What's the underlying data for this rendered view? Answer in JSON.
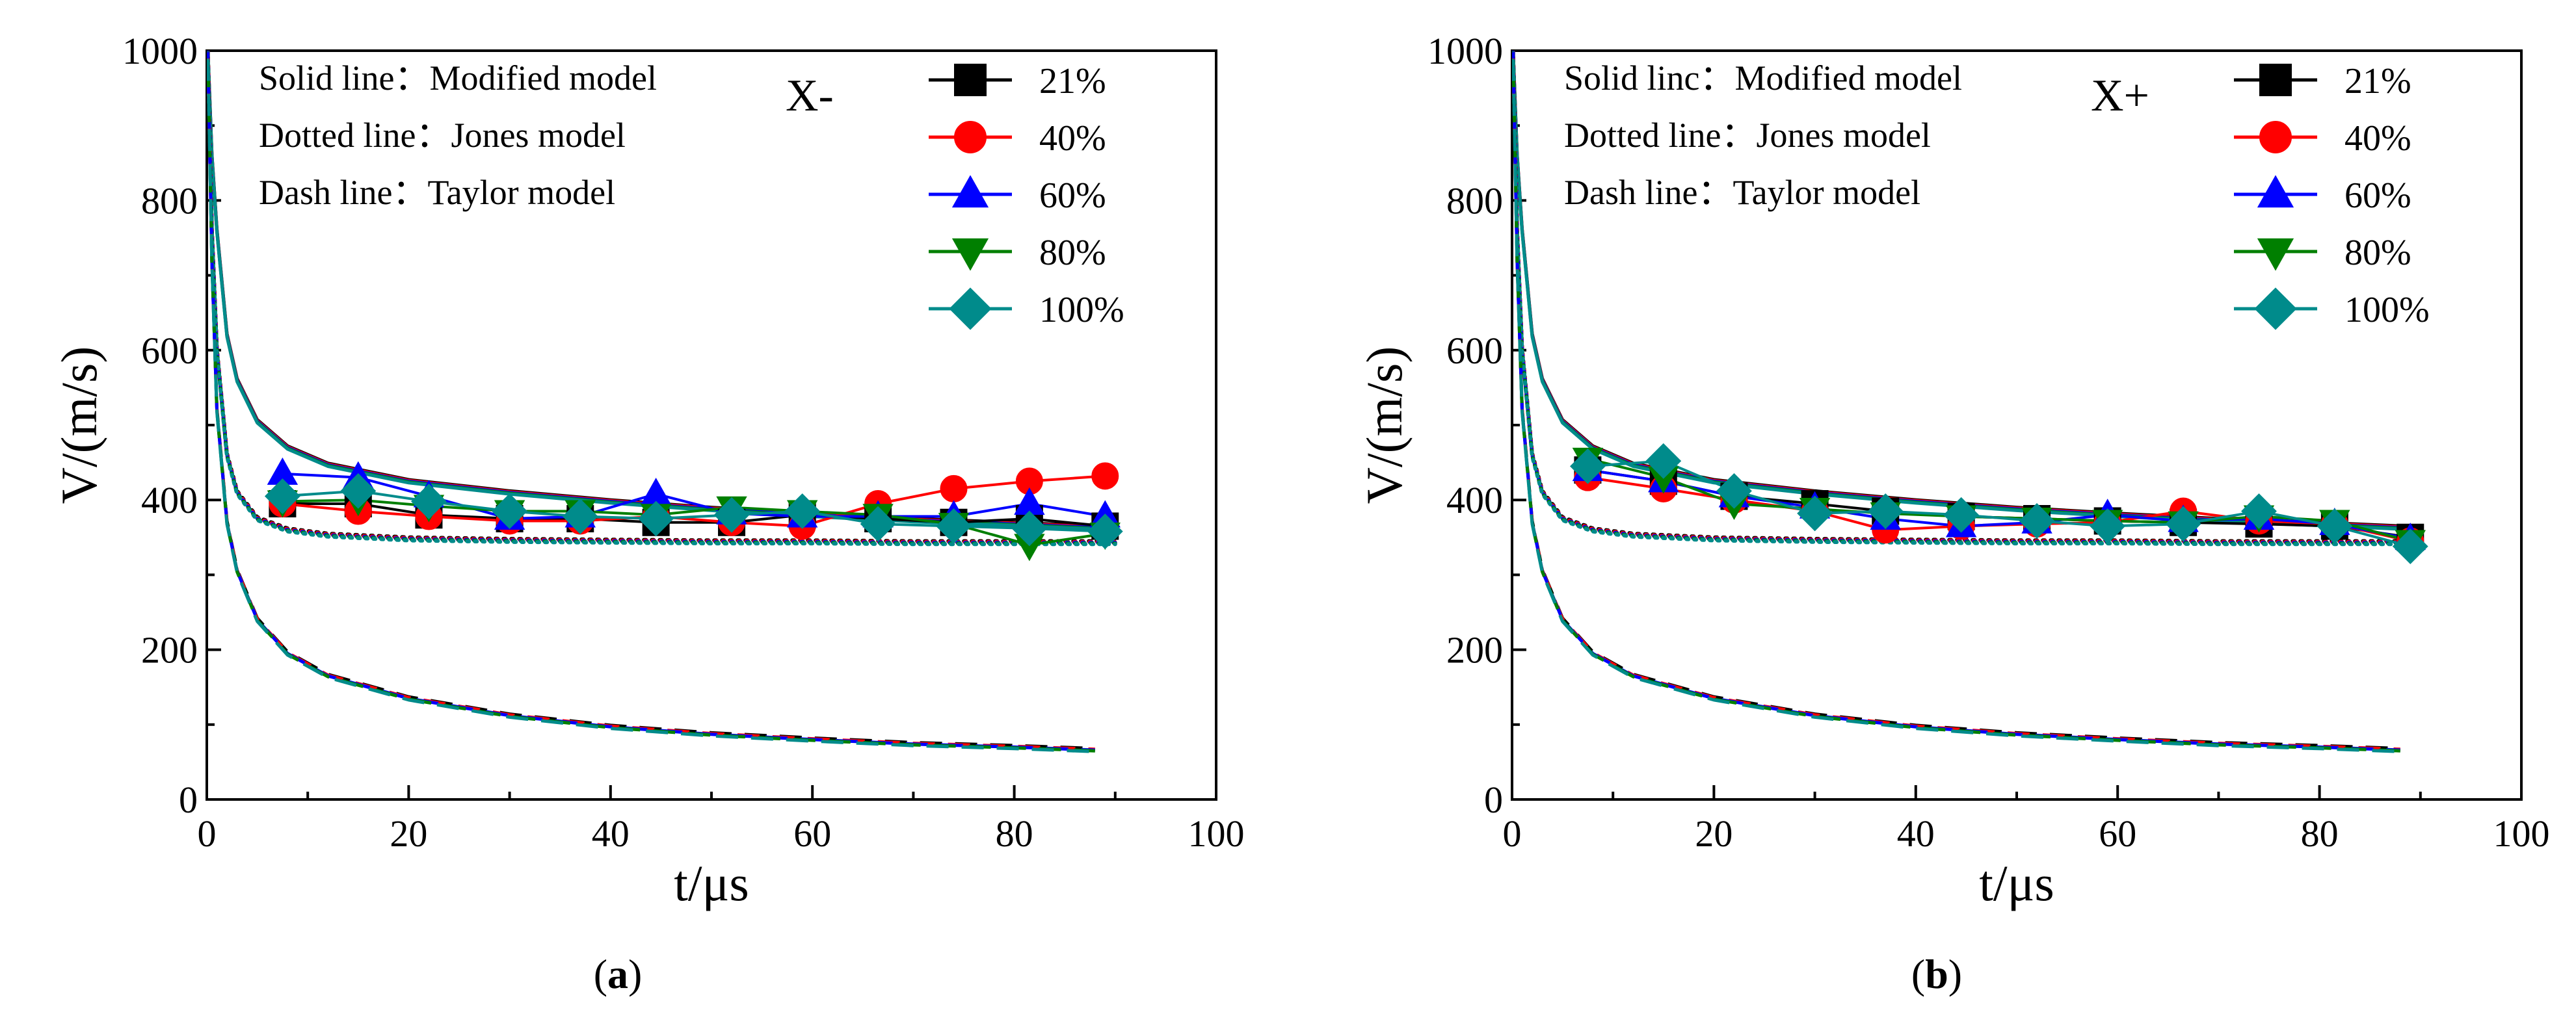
{
  "figure": {
    "panels_order": [
      "a",
      "b"
    ]
  },
  "colors": {
    "21%": "#000000",
    "40%": "#ff0000",
    "60%": "#0000ff",
    "80%": "#007f00",
    "100%": "#008b8b",
    "axes": "#000000",
    "background": "#ffffff"
  },
  "chart_data": [
    {
      "type": "line",
      "panel_label": "(a)",
      "panel_letter": "a",
      "direction_label": "X-",
      "line_notes": [
        "Solid line：Modified model",
        "Dotted line：Jones model",
        "Dash line：Taylor model"
      ],
      "xlabel": "t/μs",
      "ylabel": "V/(m/s)",
      "xlim": [
        0,
        100
      ],
      "ylim": [
        0,
        1000
      ],
      "xticks": [
        0,
        20,
        40,
        60,
        80,
        100
      ],
      "yticks": [
        0,
        200,
        400,
        600,
        800,
        1000
      ],
      "legend": [
        {
          "label": "21%",
          "marker": "square"
        },
        {
          "label": "40%",
          "marker": "circle"
        },
        {
          "label": "60%",
          "marker": "triangle-up"
        },
        {
          "label": "80%",
          "marker": "triangle-down"
        },
        {
          "label": "100%",
          "marker": "diamond"
        }
      ],
      "experimental_series": [
        {
          "name": "21%",
          "x": [
            7.5,
            15,
            22,
            30,
            37,
            44.5,
            52,
            59,
            66.5,
            74,
            81.5,
            89
          ],
          "y": [
            395,
            395,
            380,
            375,
            375,
            370,
            370,
            380,
            375,
            370,
            375,
            365
          ]
        },
        {
          "name": "40%",
          "x": [
            7.5,
            15,
            22,
            30,
            37,
            44.5,
            52,
            59,
            66.5,
            74,
            81.5,
            89
          ],
          "y": [
            395,
            385,
            378,
            372,
            372,
            378,
            370,
            365,
            395,
            415,
            425,
            432
          ]
        },
        {
          "name": "60%",
          "x": [
            7.5,
            15,
            22,
            30,
            37,
            44.5,
            52,
            59,
            66.5,
            74,
            81.5,
            89
          ],
          "y": [
            435,
            430,
            405,
            375,
            378,
            408,
            382,
            378,
            378,
            378,
            395,
            378
          ]
        },
        {
          "name": "80%",
          "x": [
            7.5,
            15,
            22,
            30,
            37,
            44.5,
            52,
            59,
            66.5,
            74,
            81.5,
            89
          ],
          "y": [
            398,
            400,
            392,
            385,
            385,
            380,
            390,
            385,
            380,
            368,
            340,
            355
          ]
        },
        {
          "name": "100%",
          "x": [
            7.5,
            15,
            22,
            30,
            37,
            44.5,
            52,
            59,
            66.5,
            74,
            81.5,
            89
          ],
          "y": [
            405,
            412,
            398,
            385,
            378,
            375,
            380,
            385,
            368,
            365,
            362,
            358
          ]
        }
      ],
      "model_curves": [
        {
          "model": "Modified model",
          "style": "solid",
          "x": [
            0.1,
            0.5,
            1,
            2,
            3,
            5,
            8,
            12,
            20,
            30,
            40,
            50,
            60,
            70,
            80,
            90
          ],
          "y": [
            1000,
            860,
            760,
            620,
            560,
            505,
            470,
            447,
            425,
            410,
            398,
            388,
            380,
            373,
            368,
            362
          ]
        },
        {
          "model": "Jones model",
          "style": "dotted",
          "x": [
            0.1,
            0.5,
            1,
            2,
            3,
            5,
            8,
            12,
            20,
            30,
            40,
            50,
            60,
            70,
            80,
            90
          ],
          "y": [
            1000,
            760,
            600,
            460,
            410,
            375,
            360,
            353,
            348,
            346,
            345,
            344,
            344,
            343,
            343,
            343
          ]
        },
        {
          "model": "Taylor model",
          "style": "dash",
          "x": [
            0.1,
            0.5,
            1,
            2,
            3,
            5,
            8,
            12,
            20,
            30,
            40,
            50,
            60,
            70,
            80,
            88
          ],
          "y": [
            1000,
            720,
            520,
            370,
            305,
            240,
            195,
            165,
            135,
            112,
            97,
            87,
            80,
            74,
            70,
            66
          ]
        }
      ]
    },
    {
      "type": "line",
      "panel_label": "(b)",
      "panel_letter": "b",
      "direction_label": "X+",
      "line_notes": [
        "Solid linc：Modified model",
        "Dotted line：Jones model",
        "Dash line：Taylor model"
      ],
      "xlabel": "t/μs",
      "ylabel": "V/(m/s)",
      "xlim": [
        0,
        100
      ],
      "ylim": [
        0,
        1000
      ],
      "xticks": [
        0,
        20,
        40,
        60,
        80,
        100
      ],
      "yticks": [
        0,
        200,
        400,
        600,
        800,
        1000
      ],
      "legend": [
        {
          "label": "21%",
          "marker": "square"
        },
        {
          "label": "40%",
          "marker": "circle"
        },
        {
          "label": "60%",
          "marker": "triangle-up"
        },
        {
          "label": "80%",
          "marker": "triangle-down"
        },
        {
          "label": "100%",
          "marker": "diamond"
        }
      ],
      "experimental_series": [
        {
          "name": "21%",
          "x": [
            7.5,
            15,
            22,
            30,
            37,
            44.5,
            52,
            59,
            66.5,
            74,
            81.5,
            89
          ],
          "y": [
            440,
            425,
            405,
            395,
            385,
            378,
            375,
            372,
            370,
            368,
            365,
            350
          ]
        },
        {
          "name": "40%",
          "x": [
            7.5,
            15,
            22,
            30,
            37,
            44.5,
            52,
            59,
            66.5,
            74,
            81.5,
            89
          ],
          "y": [
            430,
            415,
            400,
            385,
            360,
            365,
            368,
            370,
            385,
            372,
            368,
            345
          ]
        },
        {
          "name": "60%",
          "x": [
            7.5,
            15,
            22,
            30,
            37,
            44.5,
            52,
            59,
            66.5,
            74,
            81.5,
            89
          ],
          "y": [
            440,
            425,
            405,
            390,
            375,
            365,
            370,
            380,
            372,
            375,
            368,
            348
          ]
        },
        {
          "name": "80%",
          "x": [
            7.5,
            15,
            22,
            30,
            37,
            44.5,
            52,
            59,
            66.5,
            74,
            81.5,
            89
          ],
          "y": [
            455,
            430,
            395,
            388,
            382,
            378,
            375,
            372,
            370,
            378,
            372,
            345
          ]
        },
        {
          "name": "100%",
          "x": [
            7.5,
            15,
            22,
            30,
            37,
            44.5,
            52,
            59,
            66.5,
            74,
            81.5,
            89
          ],
          "y": [
            445,
            452,
            412,
            382,
            385,
            380,
            372,
            365,
            368,
            385,
            365,
            338
          ]
        }
      ],
      "model_curves": [
        {
          "model": "Modified model",
          "style": "solid",
          "x": [
            0.1,
            0.5,
            1,
            2,
            3,
            5,
            8,
            12,
            20,
            30,
            40,
            50,
            60,
            70,
            80,
            90
          ],
          "y": [
            1000,
            860,
            760,
            620,
            560,
            505,
            470,
            447,
            425,
            410,
            398,
            388,
            380,
            373,
            368,
            362
          ]
        },
        {
          "model": "Jones model",
          "style": "dotted",
          "x": [
            0.1,
            0.5,
            1,
            2,
            3,
            5,
            8,
            12,
            20,
            30,
            40,
            50,
            60,
            70,
            80,
            90
          ],
          "y": [
            1000,
            760,
            600,
            460,
            410,
            375,
            360,
            353,
            348,
            346,
            345,
            344,
            344,
            343,
            343,
            343
          ]
        },
        {
          "model": "Taylor model",
          "style": "dash",
          "x": [
            0.1,
            0.5,
            1,
            2,
            3,
            5,
            8,
            12,
            20,
            30,
            40,
            50,
            60,
            70,
            80,
            88
          ],
          "y": [
            1000,
            720,
            520,
            370,
            305,
            240,
            195,
            165,
            135,
            112,
            97,
            87,
            80,
            74,
            70,
            66
          ]
        }
      ]
    }
  ]
}
